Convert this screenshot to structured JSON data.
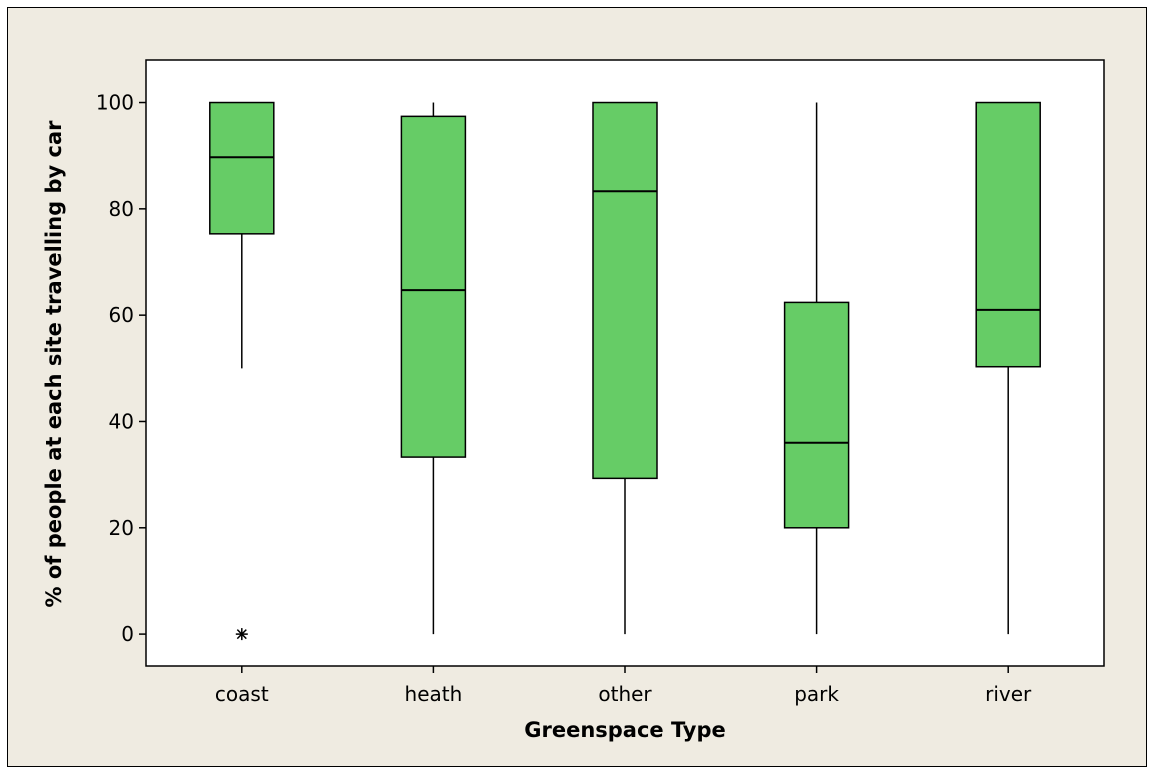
{
  "chart_data": {
    "type": "box",
    "xlabel": "Greenspace Type",
    "ylabel": "% of people at each site travelling by car",
    "ylim": [
      -6,
      108
    ],
    "yticks": [
      0,
      20,
      40,
      60,
      80,
      100
    ],
    "categories": [
      "coast",
      "heath",
      "other",
      "park",
      "river"
    ],
    "boxes": [
      {
        "category": "coast",
        "whisker_low": 50,
        "q1": 75.3,
        "median": 89.7,
        "q3": 100,
        "whisker_high": 100,
        "outliers": [
          0
        ]
      },
      {
        "category": "heath",
        "whisker_low": 0,
        "q1": 33.3,
        "median": 64.7,
        "q3": 97.4,
        "whisker_high": 100,
        "outliers": []
      },
      {
        "category": "other",
        "whisker_low": 0,
        "q1": 29.3,
        "median": 83.3,
        "q3": 100,
        "whisker_high": 100,
        "outliers": []
      },
      {
        "category": "park",
        "whisker_low": 0,
        "q1": 20,
        "median": 36,
        "q3": 62.4,
        "whisker_high": 100,
        "outliers": []
      },
      {
        "category": "river",
        "whisker_low": 0,
        "q1": 50.3,
        "median": 61,
        "q3": 100,
        "whisker_high": 100,
        "outliers": []
      }
    ],
    "box_color": "#66cc66",
    "line_color": "#000000",
    "panel_color": "#efebe1",
    "plot_bg": "#ffffff",
    "grid": false
  }
}
